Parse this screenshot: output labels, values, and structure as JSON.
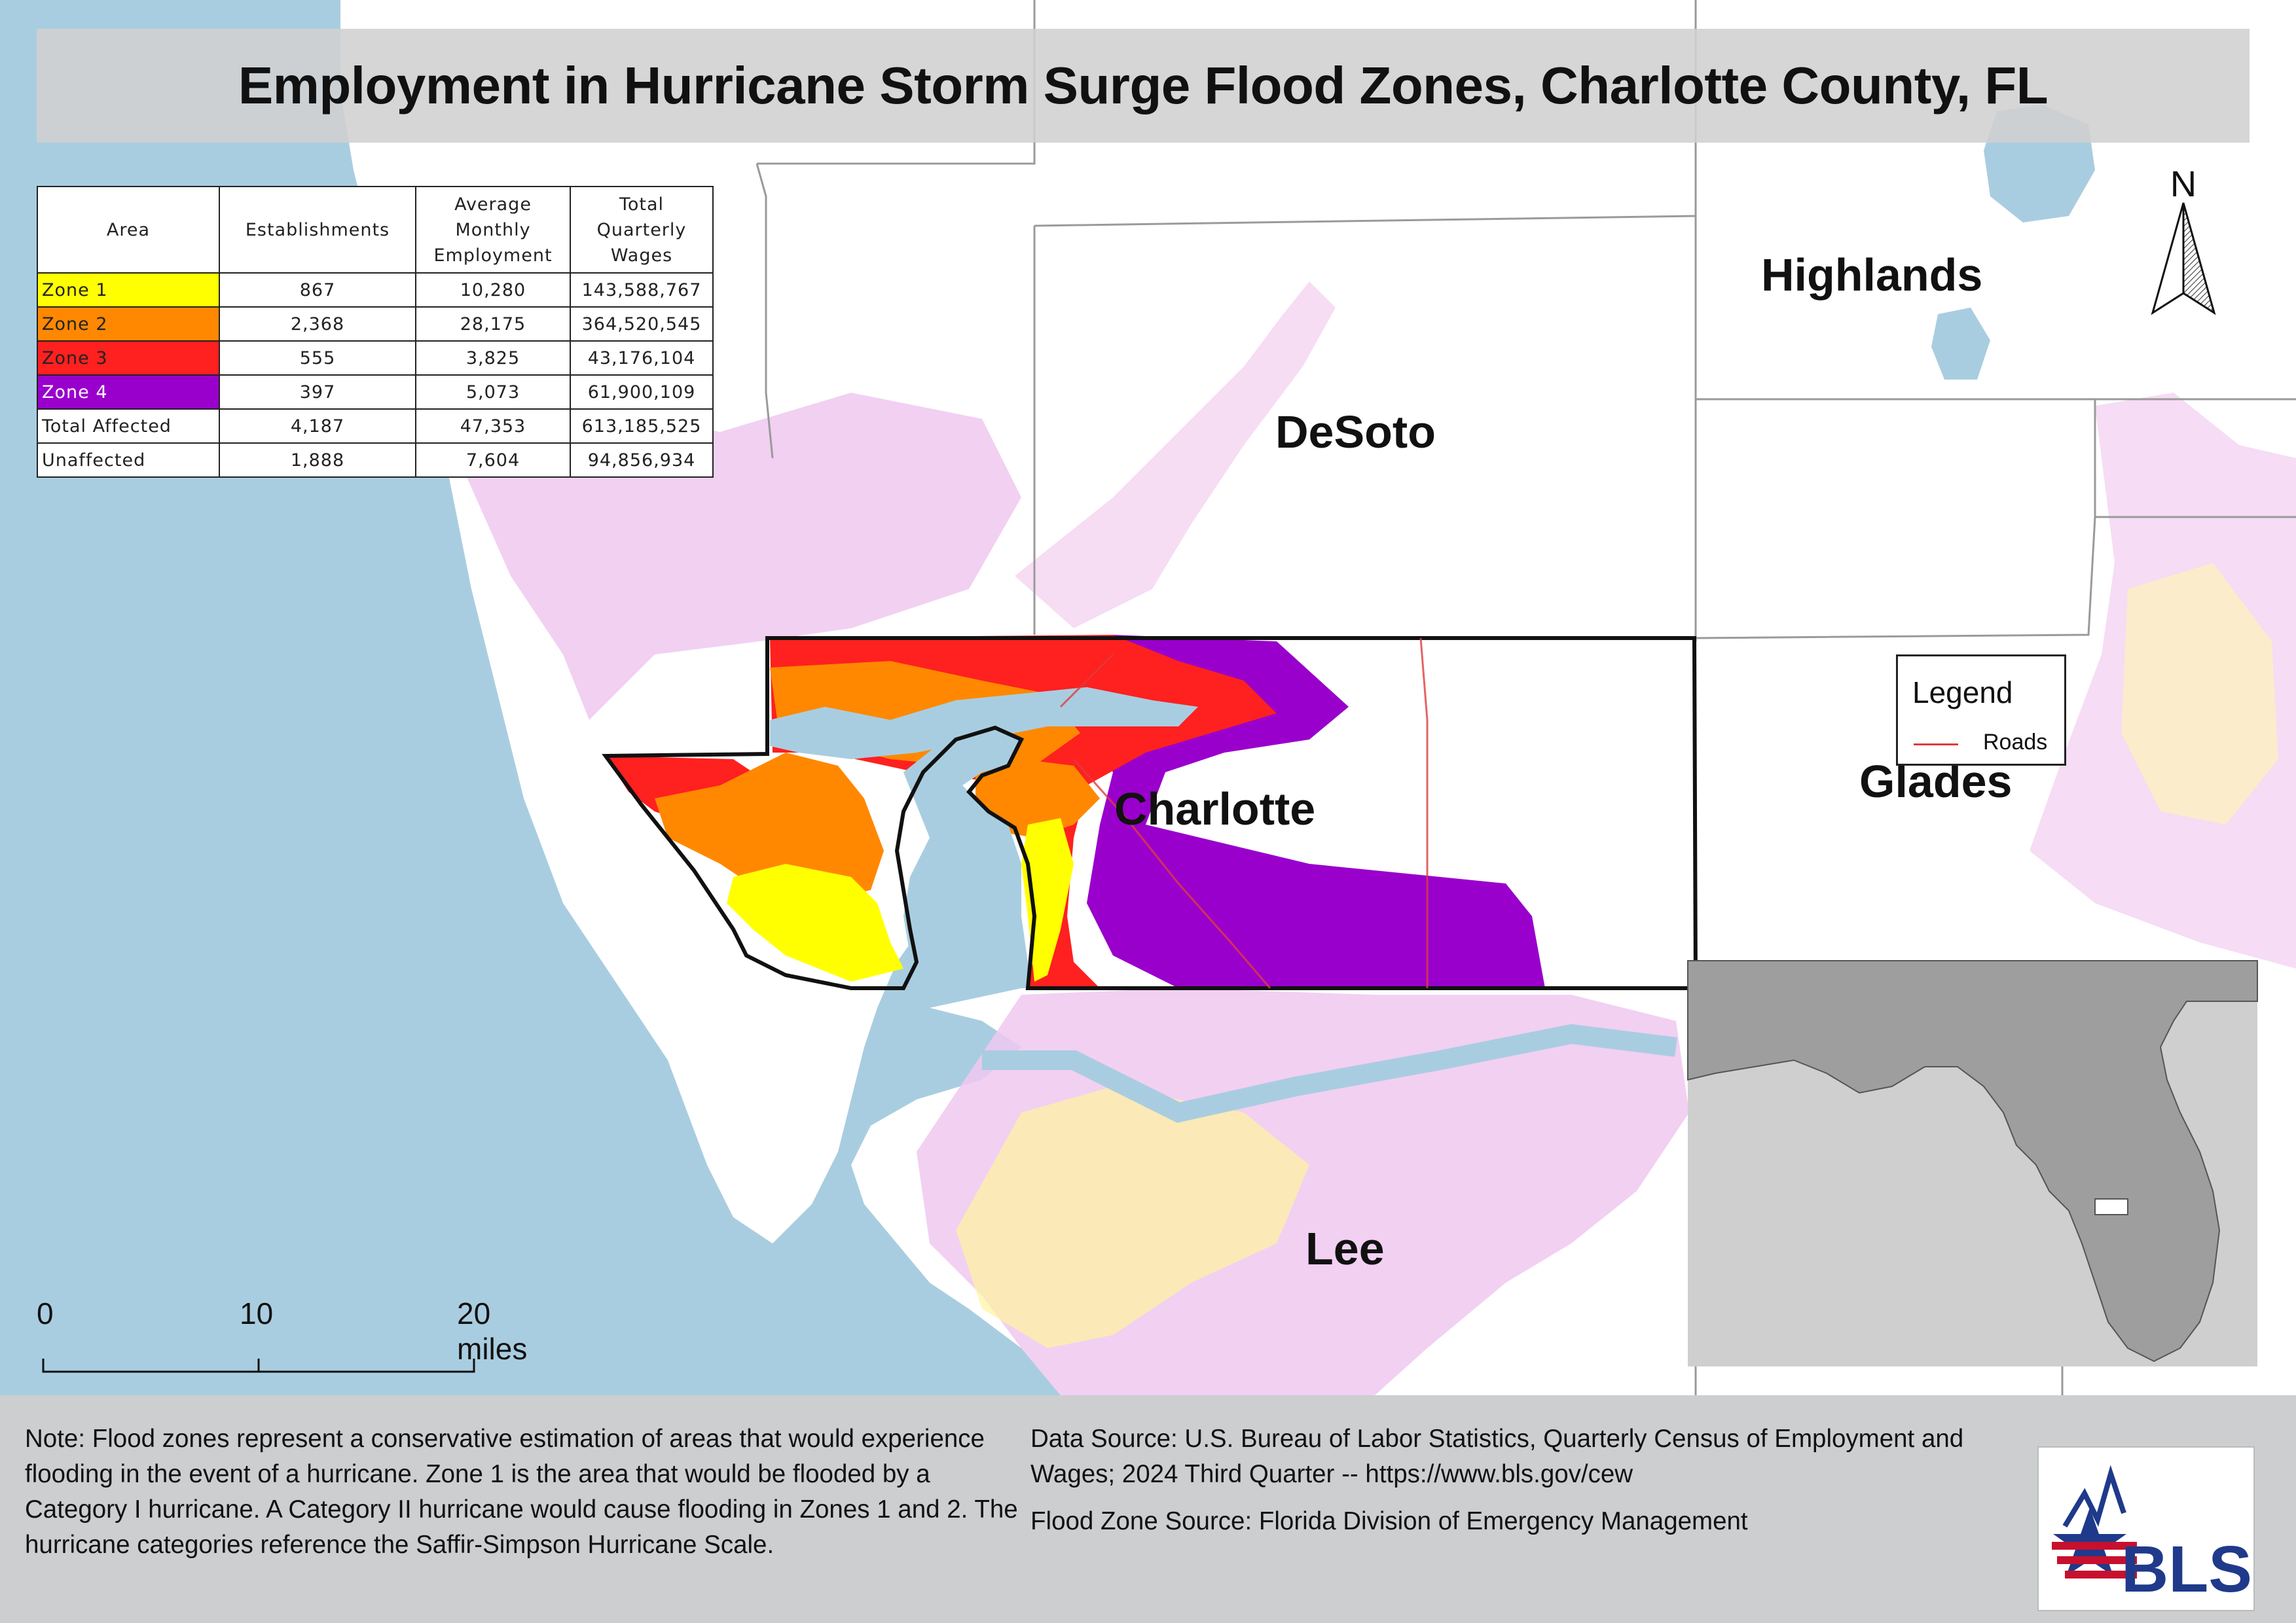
{
  "title": "Employment in Hurricane Storm Surge Flood Zones, Charlotte County, FL",
  "table": {
    "headers": [
      "Area",
      "Establishments",
      "Average Monthly Employment",
      "Total Quarterly Wages"
    ],
    "rows": [
      {
        "area": "Zone 1",
        "establishments": "867",
        "employment": "10,280",
        "wages": "143,588,767",
        "color": "#ffff00"
      },
      {
        "area": "Zone 2",
        "establishments": "2,368",
        "employment": "28,175",
        "wages": "364,520,545",
        "color": "#ff8800"
      },
      {
        "area": "Zone 3",
        "establishments": "555",
        "employment": "3,825",
        "wages": "43,176,104",
        "color": "#ff2020"
      },
      {
        "area": "Zone 4",
        "establishments": "397",
        "employment": "5,073",
        "wages": "61,900,109",
        "color": "#9900cc"
      },
      {
        "area": "Total Affected",
        "establishments": "4,187",
        "employment": "47,353",
        "wages": "613,185,525",
        "color": "#ffffff"
      },
      {
        "area": "Unaffected",
        "establishments": "1,888",
        "employment": "7,604",
        "wages": "94,856,934",
        "color": "#ffffff"
      }
    ]
  },
  "counties": {
    "highlands": "Highlands",
    "desoto": "DeSoto",
    "charlotte": "Charlotte",
    "glades": "Glades",
    "lee": "Lee"
  },
  "north_arrow": {
    "label": "N"
  },
  "legend": {
    "title": "Legend",
    "roads_label": "Roads",
    "roads_color": "#e03c3c"
  },
  "scale_bar": {
    "labels": [
      "0",
      "10",
      "20 miles"
    ]
  },
  "footer": {
    "note": "Note: Flood zones represent a conservative estimation of areas that would experience flooding in the event of a hurricane. Zone 1 is the area that would be flooded by a Category I hurricane. A Category II hurricane would cause flooding in Zones 1 and 2. The hurricane categories reference the Saffir-Simpson Hurricane Scale.",
    "data_source": "Data Source: U.S. Bureau of Labor Statistics, Quarterly Census of Employment and Wages; 2024 Third Quarter -- https://www.bls.gov/cew",
    "flood_zone_source": "Flood Zone Source: Florida Division of Emergency Management",
    "logo_text": "BLS"
  },
  "colors": {
    "water": "#a9cde0",
    "land": "#ffffff",
    "zone_1": "#ffff00",
    "zone_2": "#ff8800",
    "zone_3": "#ff2020",
    "zone_4": "#9900cc",
    "surge_light": "#f0c8f0"
  }
}
